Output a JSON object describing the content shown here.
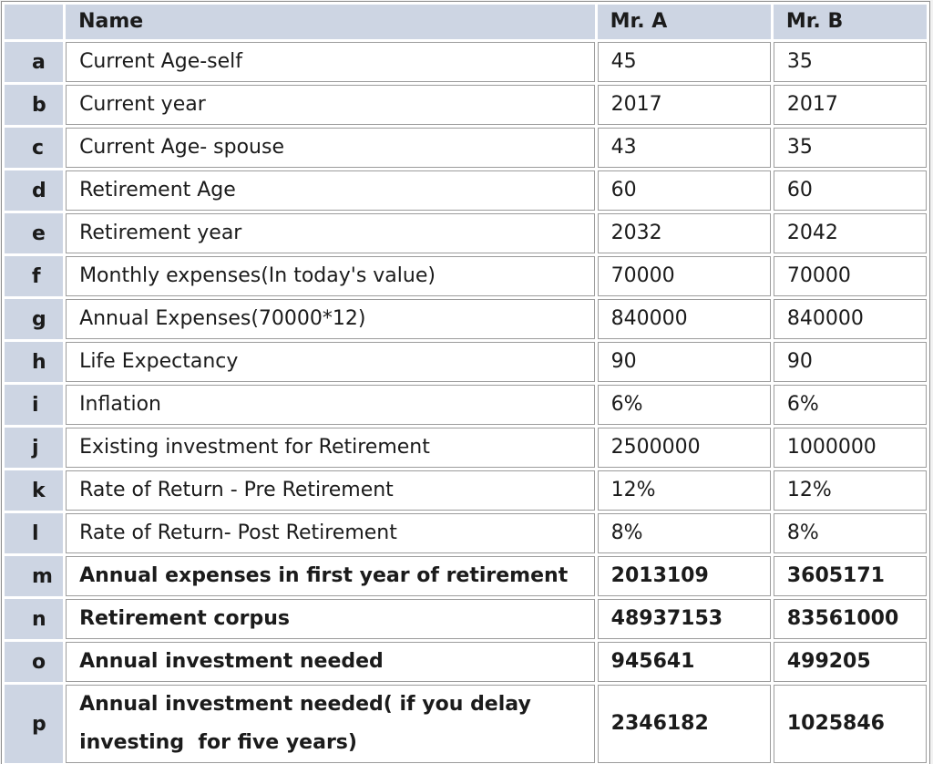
{
  "table": {
    "header": {
      "corner": "",
      "name": "Name",
      "mr_a": "Mr. A",
      "mr_b": "Mr. B"
    },
    "rows": [
      {
        "key": "a",
        "name": "Current Age-self",
        "a": "45",
        "b": "35",
        "bold": false
      },
      {
        "key": "b",
        "name": "Current year",
        "a": "2017",
        "b": "2017",
        "bold": false
      },
      {
        "key": "c",
        "name": "Current Age- spouse",
        "a": "43",
        "b": "35",
        "bold": false
      },
      {
        "key": "d",
        "name": "Retirement Age",
        "a": "60",
        "b": "60",
        "bold": false
      },
      {
        "key": "e",
        "name": "Retirement year",
        "a": "2032",
        "b": "2042",
        "bold": false
      },
      {
        "key": "f",
        "name": "Monthly expenses(In today's value)",
        "a": "70000",
        "b": "70000",
        "bold": false
      },
      {
        "key": "g",
        "name": "Annual Expenses(70000*12)",
        "a": "840000",
        "b": "840000",
        "bold": false
      },
      {
        "key": "h",
        "name": "Life Expectancy",
        "a": "90",
        "b": "90",
        "bold": false
      },
      {
        "key": "i",
        "name": "Inflation",
        "a": "6%",
        "b": "6%",
        "bold": false
      },
      {
        "key": "j",
        "name": "Existing investment for Retirement",
        "a": "2500000",
        "b": "1000000",
        "bold": false
      },
      {
        "key": "k",
        "name": "Rate of Return - Pre Retirement",
        "a": "12%",
        "b": "12%",
        "bold": false
      },
      {
        "key": "l",
        "name": "Rate of Return- Post Retirement",
        "a": "8%",
        "b": "8%",
        "bold": false
      },
      {
        "key": "m",
        "name": "Annual expenses in first year of retirement",
        "a": "2013109",
        "b": "3605171",
        "bold": true
      },
      {
        "key": "n",
        "name": "Retirement corpus",
        "a": "48937153",
        "b": "83561000",
        "bold": true
      },
      {
        "key": "o",
        "name": "Annual investment needed",
        "a": "945641",
        "b": "499205",
        "bold": true
      },
      {
        "key": "p",
        "name": "Annual investment needed( if you delay investing  for five years)",
        "a": "2346182",
        "b": "1025846",
        "bold": true
      }
    ],
    "colors": {
      "header_bg": "#cdd5e3",
      "cell_bg": "#ffffff",
      "grid_border": "#9c9c9c",
      "table_border": "#8f8f8f",
      "text": "#1b1b1b"
    }
  }
}
